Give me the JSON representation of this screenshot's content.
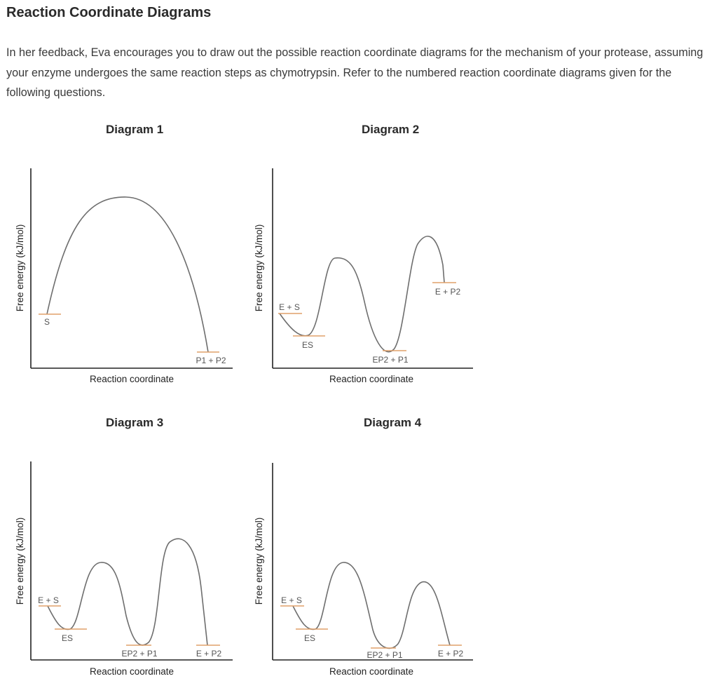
{
  "page": {
    "title": "Reaction Coordinate Diagrams",
    "intro": "In her feedback, Eva encourages you to draw out the possible reaction coordinate diagrams for the mechanism of your protease, assuming your enzyme undergoes the same reaction steps as chymotrypsin. Refer to the numbered reaction coordinate diagrams given for the following questions."
  },
  "colors": {
    "axis": "#222222",
    "curve": "#6e6e6e",
    "energy_level": "#e0a06a",
    "text": "#3a3a3a"
  },
  "diagrams": [
    {
      "heading": "Diagram 1",
      "x_axis_label": "Reaction coordinate",
      "y_axis_label": "Free energy (kJ/mol)",
      "levels": [
        {
          "label": "S"
        },
        {
          "label": "P1 + P2"
        }
      ]
    },
    {
      "heading": "Diagram 2",
      "x_axis_label": "Reaction coordinate",
      "y_axis_label": "Free energy (kJ/mol)",
      "levels": [
        {
          "label": "E + S"
        },
        {
          "label": "ES"
        },
        {
          "label": "EP2 + P1"
        },
        {
          "label": "E + P2"
        }
      ]
    },
    {
      "heading": "Diagram 3",
      "x_axis_label": "Reaction coordinate",
      "y_axis_label": "Free energy (kJ/mol)",
      "levels": [
        {
          "label": "E + S"
        },
        {
          "label": "ES"
        },
        {
          "label": "EP2 + P1"
        },
        {
          "label": "E + P2"
        }
      ]
    },
    {
      "heading": "Diagram 4",
      "x_axis_label": "Reaction coordinate",
      "y_axis_label": "Free energy (kJ/mol)",
      "levels": [
        {
          "label": "E + S"
        },
        {
          "label": "ES"
        },
        {
          "label": "EP2 + P1"
        },
        {
          "label": "E + P2"
        }
      ]
    }
  ]
}
